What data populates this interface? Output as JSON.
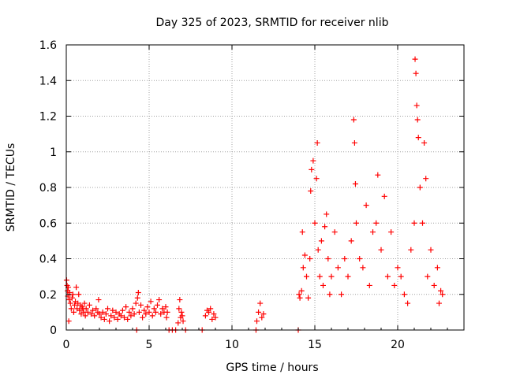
{
  "chart_data": {
    "type": "scatter",
    "title": "Day 325 of 2023, SRMTID for receiver nlib",
    "xlabel": "GPS time / hours",
    "ylabel": "SRMTID / TECUs",
    "xlim": [
      0,
      24
    ],
    "ylim": [
      0,
      1.6
    ],
    "x_ticks": [
      0,
      5,
      10,
      15,
      20
    ],
    "x_tick_labels": [
      "0",
      "5",
      "10",
      "15",
      "20"
    ],
    "y_ticks": [
      0,
      0.2,
      0.4,
      0.6,
      0.8,
      1.0,
      1.2,
      1.4,
      1.6
    ],
    "y_tick_labels": [
      "0",
      "0.2",
      "0.4",
      "0.6",
      "0.8",
      "1",
      "1.2",
      "1.4",
      "1.6"
    ],
    "grid": true,
    "marker": "plus",
    "marker_color": "#ff0000",
    "series": [
      {
        "name": "SRMTID",
        "points": [
          [
            0.02,
            0.28
          ],
          [
            0.05,
            0.25
          ],
          [
            0.08,
            0.22
          ],
          [
            0.1,
            0.19
          ],
          [
            0.12,
            0.24
          ],
          [
            0.15,
            0.05
          ],
          [
            0.18,
            0.17
          ],
          [
            0.2,
            0.21
          ],
          [
            0.25,
            0.15
          ],
          [
            0.3,
            0.12
          ],
          [
            0.35,
            0.18
          ],
          [
            0.4,
            0.2
          ],
          [
            0.45,
            0.1
          ],
          [
            0.5,
            0.14
          ],
          [
            0.55,
            0.16
          ],
          [
            0.6,
            0.24
          ],
          [
            0.65,
            0.12
          ],
          [
            0.7,
            0.15
          ],
          [
            0.75,
            0.2
          ],
          [
            0.8,
            0.11
          ],
          [
            0.85,
            0.14
          ],
          [
            0.9,
            0.09
          ],
          [
            0.95,
            0.13
          ],
          [
            1.0,
            0.12
          ],
          [
            1.05,
            0.1
          ],
          [
            1.1,
            0.15
          ],
          [
            1.15,
            0.08
          ],
          [
            1.2,
            0.12
          ],
          [
            1.3,
            0.1
          ],
          [
            1.4,
            0.14
          ],
          [
            1.5,
            0.09
          ],
          [
            1.6,
            0.11
          ],
          [
            1.7,
            0.08
          ],
          [
            1.8,
            0.12
          ],
          [
            1.9,
            0.1
          ],
          [
            1.95,
            0.17
          ],
          [
            2.0,
            0.09
          ],
          [
            2.1,
            0.07
          ],
          [
            2.2,
            0.1
          ],
          [
            2.3,
            0.06
          ],
          [
            2.4,
            0.09
          ],
          [
            2.5,
            0.12
          ],
          [
            2.6,
            0.05
          ],
          [
            2.7,
            0.08
          ],
          [
            2.8,
            0.11
          ],
          [
            2.9,
            0.07
          ],
          [
            3.0,
            0.1
          ],
          [
            3.1,
            0.06
          ],
          [
            3.2,
            0.09
          ],
          [
            3.3,
            0.08
          ],
          [
            3.4,
            0.11
          ],
          [
            3.5,
            0.07
          ],
          [
            3.6,
            0.13
          ],
          [
            3.7,
            0.06
          ],
          [
            3.8,
            0.1
          ],
          [
            3.9,
            0.08
          ],
          [
            4.0,
            0.12
          ],
          [
            4.1,
            0.09
          ],
          [
            4.2,
            0.15
          ],
          [
            4.25,
            0.0
          ],
          [
            4.3,
            0.18
          ],
          [
            4.35,
            0.21
          ],
          [
            4.4,
            0.1
          ],
          [
            4.5,
            0.14
          ],
          [
            4.6,
            0.07
          ],
          [
            4.7,
            0.11
          ],
          [
            4.8,
            0.09
          ],
          [
            4.9,
            0.13
          ],
          [
            5.0,
            0.1
          ],
          [
            5.1,
            0.16
          ],
          [
            5.2,
            0.08
          ],
          [
            5.3,
            0.12
          ],
          [
            5.4,
            0.1
          ],
          [
            5.5,
            0.14
          ],
          [
            5.6,
            0.17
          ],
          [
            5.7,
            0.09
          ],
          [
            5.8,
            0.12
          ],
          [
            5.9,
            0.1
          ],
          [
            6.0,
            0.13
          ],
          [
            6.05,
            0.07
          ],
          [
            6.1,
            0.1
          ],
          [
            6.2,
            0.0
          ],
          [
            6.4,
            0.0
          ],
          [
            6.6,
            0.0
          ],
          [
            6.75,
            0.04
          ],
          [
            6.8,
            0.12
          ],
          [
            6.85,
            0.17
          ],
          [
            6.9,
            0.07
          ],
          [
            6.95,
            0.1
          ],
          [
            7.0,
            0.08
          ],
          [
            7.05,
            0.05
          ],
          [
            7.2,
            0.0
          ],
          [
            8.2,
            0.0
          ],
          [
            8.4,
            0.08
          ],
          [
            8.5,
            0.11
          ],
          [
            8.6,
            0.1
          ],
          [
            8.7,
            0.12
          ],
          [
            8.8,
            0.06
          ],
          [
            8.9,
            0.09
          ],
          [
            9.0,
            0.07
          ],
          [
            11.45,
            0.0
          ],
          [
            11.5,
            0.05
          ],
          [
            11.6,
            0.1
          ],
          [
            11.7,
            0.15
          ],
          [
            11.8,
            0.07
          ],
          [
            11.9,
            0.09
          ],
          [
            14.0,
            0.0
          ],
          [
            14.05,
            0.2
          ],
          [
            14.1,
            0.18
          ],
          [
            14.2,
            0.22
          ],
          [
            14.25,
            0.55
          ],
          [
            14.3,
            0.35
          ],
          [
            14.4,
            0.42
          ],
          [
            14.5,
            0.3
          ],
          [
            14.6,
            0.18
          ],
          [
            14.7,
            0.4
          ],
          [
            14.75,
            0.78
          ],
          [
            14.8,
            0.9
          ],
          [
            14.9,
            0.95
          ],
          [
            15.0,
            0.6
          ],
          [
            15.1,
            0.85
          ],
          [
            15.15,
            1.05
          ],
          [
            15.2,
            0.45
          ],
          [
            15.3,
            0.3
          ],
          [
            15.4,
            0.5
          ],
          [
            15.5,
            0.25
          ],
          [
            15.6,
            0.58
          ],
          [
            15.7,
            0.65
          ],
          [
            15.8,
            0.4
          ],
          [
            15.9,
            0.2
          ],
          [
            16.0,
            0.3
          ],
          [
            16.2,
            0.55
          ],
          [
            16.4,
            0.35
          ],
          [
            16.6,
            0.2
          ],
          [
            16.8,
            0.4
          ],
          [
            17.0,
            0.3
          ],
          [
            17.2,
            0.5
          ],
          [
            17.35,
            1.18
          ],
          [
            17.4,
            1.05
          ],
          [
            17.45,
            0.82
          ],
          [
            17.5,
            0.6
          ],
          [
            17.7,
            0.4
          ],
          [
            17.9,
            0.35
          ],
          [
            18.1,
            0.7
          ],
          [
            18.3,
            0.25
          ],
          [
            18.5,
            0.55
          ],
          [
            18.7,
            0.6
          ],
          [
            18.8,
            0.87
          ],
          [
            19.0,
            0.45
          ],
          [
            19.2,
            0.75
          ],
          [
            19.4,
            0.3
          ],
          [
            19.6,
            0.55
          ],
          [
            19.8,
            0.25
          ],
          [
            20.0,
            0.35
          ],
          [
            20.2,
            0.3
          ],
          [
            20.4,
            0.2
          ],
          [
            20.6,
            0.15
          ],
          [
            20.8,
            0.45
          ],
          [
            21.0,
            0.6
          ],
          [
            21.05,
            1.52
          ],
          [
            21.1,
            1.44
          ],
          [
            21.15,
            1.26
          ],
          [
            21.2,
            1.18
          ],
          [
            21.25,
            1.08
          ],
          [
            21.35,
            0.8
          ],
          [
            21.5,
            0.6
          ],
          [
            21.6,
            1.05
          ],
          [
            21.7,
            0.85
          ],
          [
            21.8,
            0.3
          ],
          [
            22.0,
            0.45
          ],
          [
            22.2,
            0.25
          ],
          [
            22.4,
            0.35
          ],
          [
            22.5,
            0.15
          ],
          [
            22.6,
            0.22
          ],
          [
            22.7,
            0.2
          ]
        ]
      }
    ]
  }
}
